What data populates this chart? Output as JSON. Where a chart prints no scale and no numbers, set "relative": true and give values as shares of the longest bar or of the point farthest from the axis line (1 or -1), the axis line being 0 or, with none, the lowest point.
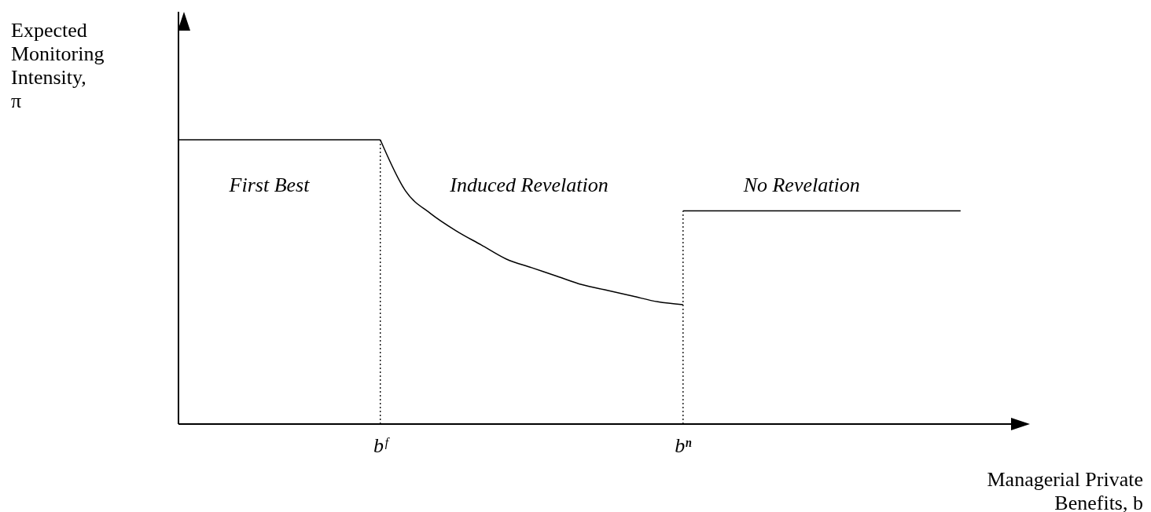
{
  "chart_data": {
    "type": "line",
    "relative": true,
    "ylabel": "Expected Monitoring Intensity, π",
    "xlabel": "Managerial Private Benefits, b",
    "categories": [
      null,
      null,
      null,
      null,
      null,
      null,
      null,
      null,
      "bᶠ",
      null,
      null,
      null,
      null,
      null,
      null,
      null,
      null,
      null,
      null,
      null,
      "bⁿ",
      null,
      null,
      null,
      null,
      null,
      null,
      null,
      null,
      null,
      null,
      null,
      null,
      null
    ],
    "series": [
      {
        "color": "#000000",
        "values": [
          1,
          1,
          1,
          1,
          1,
          1,
          1,
          1,
          1,
          null,
          null,
          null,
          null,
          null,
          null,
          null,
          null,
          null,
          null,
          null,
          null,
          null,
          null,
          null,
          null,
          null,
          null,
          null,
          null,
          null,
          null,
          null,
          null,
          null
        ]
      },
      {
        "color": "#000000",
        "values": [
          null,
          null,
          null,
          null,
          null,
          null,
          null,
          null,
          1,
          0.82,
          0.74,
          0.68,
          0.63,
          0.58,
          0.55,
          0.52,
          0.49,
          0.47,
          0.45,
          0.43,
          0.42,
          null,
          null,
          null,
          null,
          null,
          null,
          null,
          null,
          null,
          null,
          null,
          null,
          null
        ]
      },
      {
        "color": "#000000",
        "values": [
          null,
          null,
          null,
          null,
          null,
          null,
          null,
          null,
          null,
          null,
          null,
          null,
          null,
          null,
          null,
          null,
          null,
          null,
          null,
          null,
          0.75,
          0.75,
          0.75,
          0.75,
          0.75,
          0.75,
          0.75,
          0.75,
          0.75,
          0.75,
          0.75,
          0.75,
          null,
          null
        ]
      }
    ],
    "ref_lines": [
      {
        "axis": "x",
        "value": "bᶠ",
        "color": "#000000",
        "line_style": "dotted"
      },
      {
        "axis": "x",
        "value": "bⁿ",
        "color": "#000000",
        "line_style": "dotted"
      }
    ],
    "annotations": [
      "First Best",
      "Induced Revelation",
      "No Revelation"
    ],
    "grid": false,
    "marker": "none",
    "line_style": "solid"
  }
}
